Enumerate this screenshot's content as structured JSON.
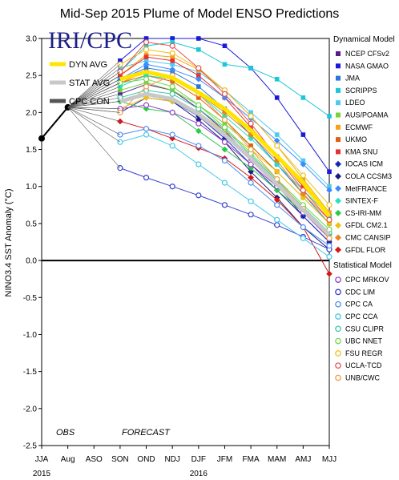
{
  "chart_data": {
    "type": "line",
    "title": "Mid-Sep 2015 Plume of Model ENSO Predictions",
    "ylabel": "NINO3.4 SST Anomaly (°C)",
    "xlabel": "",
    "logo": "IRI/CPC",
    "ylim": [
      -2.5,
      3.0
    ],
    "yticks": [
      "3.0",
      "2.5",
      "2.0",
      "1.5",
      "1.0",
      "0.5",
      "0.0",
      "-0.5",
      "-1.0",
      "-1.5",
      "-2.0",
      "-2.5"
    ],
    "categories": [
      "JJA",
      "Aug",
      "ASO",
      "SON",
      "OND",
      "NDJ",
      "DJF",
      "JFM",
      "FMA",
      "MAM",
      "AMJ",
      "MJJ"
    ],
    "year_labels": [
      {
        "text": "2015",
        "index": 0
      },
      {
        "text": "2016",
        "index": 6
      }
    ],
    "annotations": {
      "obs": "OBS",
      "forecast": "FORECAST"
    },
    "observed": {
      "x": [
        "JJA",
        "Aug"
      ],
      "values": [
        1.65,
        2.07
      ]
    },
    "legend_headers": {
      "dynamical": "Dynamical Model",
      "statistical": "Statistical Model"
    },
    "averages": [
      {
        "name": "DYN AVG",
        "color": "#ffe400",
        "values": [
          null,
          null,
          null,
          2.45,
          2.55,
          2.47,
          2.27,
          2.05,
          1.76,
          1.41,
          1.05,
          0.6
        ]
      },
      {
        "name": "STAT AVG",
        "color": "#c8c8c8",
        "values": [
          null,
          null,
          null,
          2.15,
          2.25,
          2.18,
          1.98,
          1.7,
          1.38,
          1.03,
          0.68,
          0.35
        ]
      },
      {
        "name": "CPC CON",
        "color": "#555555",
        "values": []
      }
    ],
    "dynamical_models": [
      {
        "name": "NCEP CFSv2",
        "color": "#5b1a8c",
        "values": [
          null,
          null,
          null,
          2.25,
          2.38,
          2.3,
          2.05,
          1.75,
          1.38,
          1.02,
          0.6,
          0.25
        ]
      },
      {
        "name": "NASA GMAO",
        "color": "#1a1adb",
        "values": [
          null,
          null,
          null,
          2.7,
          3.0,
          3.0,
          3.0,
          2.9,
          2.6,
          2.2,
          1.7,
          1.2
        ]
      },
      {
        "name": "JMA",
        "color": "#2a78d6",
        "values": [
          null,
          null,
          null,
          2.45,
          2.6,
          2.55,
          2.35,
          2.05,
          1.7,
          1.3,
          0.9,
          0.5
        ]
      },
      {
        "name": "SCRIPPS",
        "color": "#19c8d8",
        "values": [
          null,
          null,
          null,
          2.55,
          2.9,
          2.95,
          2.85,
          2.65,
          2.6,
          2.45,
          2.2,
          1.95
        ]
      },
      {
        "name": "LDEO",
        "color": "#4ec9f0",
        "values": [
          null,
          null,
          null,
          2.6,
          2.7,
          2.65,
          2.55,
          2.3,
          2.0,
          1.7,
          1.35,
          1.0
        ]
      },
      {
        "name": "AUS/POAMA",
        "color": "#7ad23a",
        "values": [
          null,
          null,
          null,
          2.3,
          2.4,
          2.3,
          2.1,
          1.85,
          1.55,
          1.2,
          0.85,
          0.5
        ]
      },
      {
        "name": "ECMWF",
        "color": "#f5a21a",
        "values": [
          null,
          null,
          null,
          2.5,
          2.78,
          2.75,
          2.58,
          2.3,
          1.95,
          1.55,
          1.1,
          0.65
        ]
      },
      {
        "name": "UKMO",
        "color": "#e06010",
        "values": [
          null,
          null,
          null,
          2.4,
          2.5,
          2.42,
          2.2,
          1.9,
          1.55,
          1.2,
          null,
          null
        ]
      },
      {
        "name": "KMA SNU",
        "color": "#e83030",
        "values": [
          null,
          null,
          null,
          2.5,
          2.75,
          2.7,
          2.5,
          2.2,
          1.8,
          1.4,
          1.0,
          0.6
        ]
      },
      {
        "name": "IOCAS ICM",
        "color": "#1428b4",
        "values": [
          null,
          null,
          null,
          2.0,
          2.2,
          2.15,
          1.95,
          1.65,
          1.3,
          0.95,
          0.6,
          0.25
        ]
      },
      {
        "name": "COLA CCSM3",
        "color": "#1a1a80",
        "values": [
          null,
          null,
          null,
          2.15,
          2.25,
          2.15,
          1.9,
          1.6,
          1.2,
          0.85,
          0.45,
          0.15
        ]
      },
      {
        "name": "MetFRANCE",
        "color": "#3c8cff",
        "values": [
          null,
          null,
          null,
          2.45,
          2.65,
          2.58,
          2.45,
          2.2,
          1.92,
          1.62,
          1.3,
          0.95
        ]
      },
      {
        "name": "SINTEX-F",
        "color": "#27e0c8",
        "values": [
          null,
          null,
          null,
          2.35,
          2.5,
          2.45,
          2.25,
          1.95,
          1.65,
          1.3,
          0.95,
          0.6
        ]
      },
      {
        "name": "CS-IRI-MM",
        "color": "#2ec84a",
        "values": [
          null,
          null,
          null,
          2.15,
          2.05,
          2.0,
          1.75,
          1.5,
          1.25,
          0.95,
          0.65,
          0.35
        ]
      },
      {
        "name": "GFDL CM2.1",
        "color": "#f0c010",
        "values": [
          null,
          null,
          null,
          2.05,
          2.2,
          2.15,
          2.0,
          1.75,
          1.5,
          1.2,
          0.85,
          0.5
        ]
      },
      {
        "name": "CMC CANSIP",
        "color": "#ee8418",
        "values": [
          null,
          null,
          null,
          2.4,
          2.55,
          2.45,
          2.25,
          2.0,
          1.7,
          1.35,
          0.9,
          0.55
        ]
      },
      {
        "name": "GFDL FLOR",
        "color": "#d41818",
        "values": [
          null,
          null,
          null,
          1.88,
          1.78,
          1.65,
          1.52,
          1.38,
          1.12,
          0.82,
          0.45,
          -0.18
        ]
      }
    ],
    "statistical_models": [
      {
        "name": "CPC MRKOV",
        "color": "#9440c8",
        "values": [
          null,
          null,
          null,
          2.05,
          2.1,
          2.0,
          1.85,
          1.6,
          1.3,
          1.0,
          0.65,
          0.3
        ]
      },
      {
        "name": "CDC LIM",
        "color": "#3640d0",
        "values": [
          null,
          null,
          null,
          1.25,
          1.12,
          1.0,
          0.88,
          0.75,
          0.62,
          0.48,
          0.32,
          0.15
        ]
      },
      {
        "name": "CPC CA",
        "color": "#4e8ef0",
        "values": [
          null,
          null,
          null,
          1.7,
          1.78,
          1.7,
          1.55,
          1.35,
          1.05,
          0.75,
          0.45,
          0.2
        ]
      },
      {
        "name": "CPC CCA",
        "color": "#46c8ea",
        "values": [
          null,
          null,
          null,
          1.6,
          1.7,
          1.55,
          1.3,
          1.05,
          0.8,
          0.55,
          0.3,
          0.05
        ]
      },
      {
        "name": "CSU CLIPR",
        "color": "#3cc8a8",
        "values": [
          null,
          null,
          null,
          2.2,
          2.3,
          2.25,
          2.05,
          1.78,
          1.42,
          1.08,
          0.72,
          0.38
        ]
      },
      {
        "name": "UBC NNET",
        "color": "#6cd84c",
        "values": [
          null,
          null,
          null,
          2.4,
          2.45,
          2.35,
          2.1,
          1.8,
          1.45,
          1.1,
          0.75,
          0.42
        ]
      },
      {
        "name": "FSU REGR",
        "color": "#f0c020",
        "values": [
          null,
          null,
          null,
          2.65,
          2.85,
          2.8,
          2.6,
          2.3,
          1.95,
          1.55,
          1.15,
          0.75
        ]
      },
      {
        "name": "UCLA-TCD",
        "color": "#e85050",
        "values": [
          null,
          null,
          null,
          2.55,
          2.95,
          2.9,
          2.6,
          2.25,
          1.85,
          1.4,
          0.95,
          0.55
        ]
      },
      {
        "name": "UNB/CWC",
        "color": "#f0a050",
        "values": [
          null,
          null,
          null,
          2.0,
          2.35,
          2.5,
          2.25,
          1.9,
          1.5,
          1.1,
          0.7,
          0.3
        ]
      }
    ]
  }
}
